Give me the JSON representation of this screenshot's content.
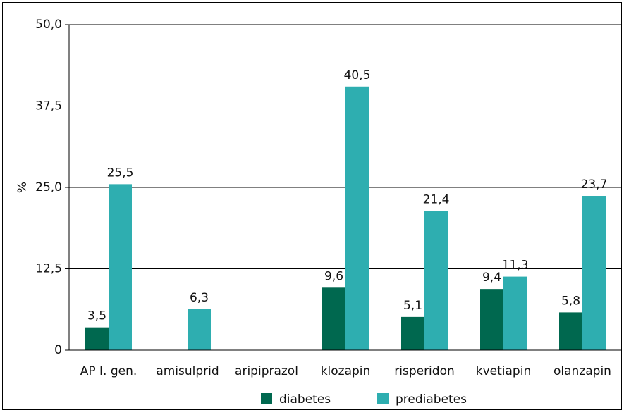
{
  "chart_data": {
    "type": "bar",
    "categories": [
      "AP I. gen.",
      "amisulprid",
      "aripiprazol",
      "klozapin",
      "risperidon",
      "kvetiapin",
      "olanzapin"
    ],
    "series": [
      {
        "name": "diabetes",
        "color": "#00684f",
        "values": [
          3.5,
          null,
          null,
          9.6,
          5.1,
          9.4,
          5.8
        ],
        "value_labels": [
          "3,5",
          null,
          null,
          "9,6",
          "5,1",
          "9,4",
          "5,8"
        ]
      },
      {
        "name": "prediabetes",
        "color": "#2eaeb0",
        "values": [
          25.5,
          6.3,
          null,
          40.5,
          21.4,
          11.3,
          23.7
        ],
        "value_labels": [
          "25,5",
          "6,3",
          null,
          "40,5",
          "21,4",
          "11,3",
          "23,7"
        ]
      }
    ],
    "y_label": "%",
    "ylim": [
      0,
      50
    ],
    "yticks": [
      0,
      {
        "value": 12.5,
        "label": "12,5"
      },
      {
        "value": 25,
        "label": "25,0"
      },
      {
        "value": 37.5,
        "label": "37,5"
      },
      {
        "value": 50,
        "label": "50,0"
      }
    ],
    "grid": true,
    "legend": "bottom"
  }
}
